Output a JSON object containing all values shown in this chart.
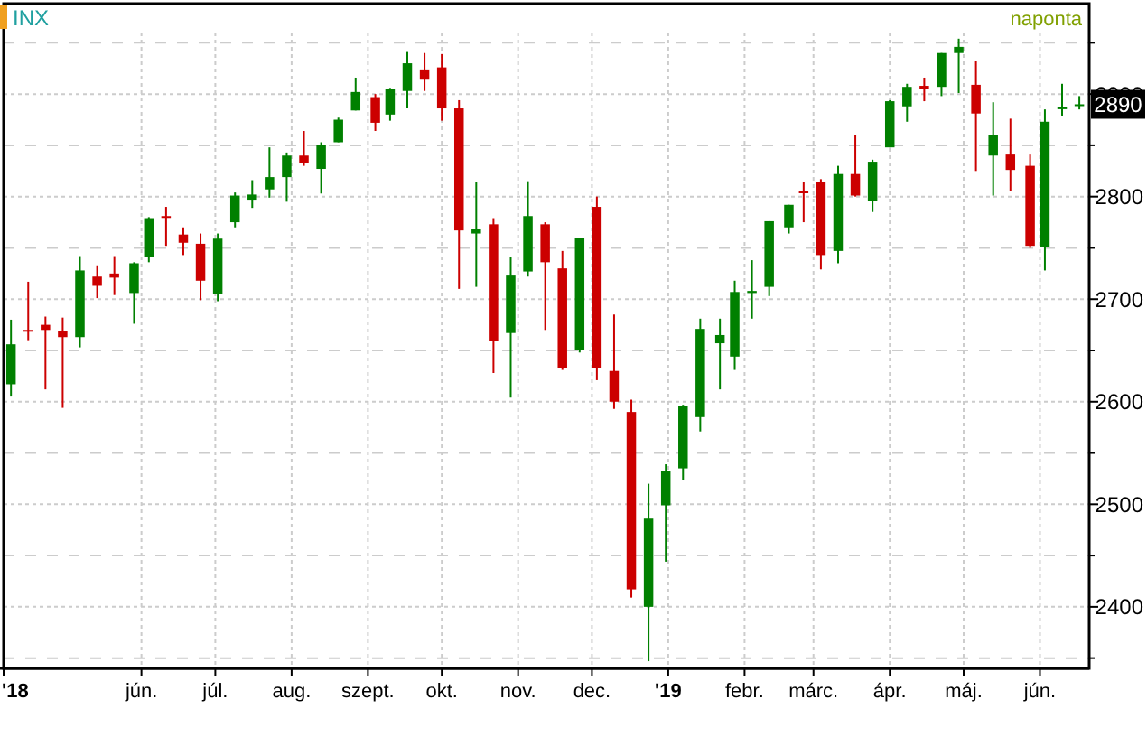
{
  "chart_data": {
    "type": "candlestick",
    "title": "INX",
    "annotations": [
      "naponta",
      {
        "text": "2890",
        "x": "2019-06-17",
        "y": 2890
      }
    ],
    "x": [
      "2018-04-09",
      "2018-04-16",
      "2018-04-23",
      "2018-04-30",
      "2018-05-07",
      "2018-05-14",
      "2018-05-21",
      "2018-05-29",
      "2018-06-04",
      "2018-06-11",
      "2018-06-18",
      "2018-06-25",
      "2018-07-02",
      "2018-07-09",
      "2018-07-16",
      "2018-07-23",
      "2018-07-30",
      "2018-08-06",
      "2018-08-13",
      "2018-08-20",
      "2018-08-27",
      "2018-09-04",
      "2018-09-10",
      "2018-09-17",
      "2018-09-24",
      "2018-10-01",
      "2018-10-08",
      "2018-10-15",
      "2018-10-22",
      "2018-10-29",
      "2018-11-05",
      "2018-11-12",
      "2018-11-19",
      "2018-11-26",
      "2018-12-03",
      "2018-12-10",
      "2018-12-17",
      "2018-12-24",
      "2018-12-31",
      "2019-01-07",
      "2019-01-14",
      "2019-01-22",
      "2019-01-28",
      "2019-02-04",
      "2019-02-11",
      "2019-02-19",
      "2019-02-25",
      "2019-03-04",
      "2019-03-11",
      "2019-03-18",
      "2019-03-25",
      "2019-04-01",
      "2019-04-08",
      "2019-04-15",
      "2019-04-22",
      "2019-04-29",
      "2019-05-06",
      "2019-05-13",
      "2019-05-20",
      "2019-05-28",
      "2019-06-03",
      "2019-06-10",
      "2019-06-17"
    ],
    "ohlc": [
      [
        2617,
        2680,
        2605,
        2656
      ],
      [
        2670,
        2717,
        2660,
        2670
      ],
      [
        2675,
        2683,
        2612,
        2670
      ],
      [
        2669,
        2682,
        2594,
        2663
      ],
      [
        2663,
        2742,
        2653,
        2728
      ],
      [
        2722,
        2733,
        2701,
        2713
      ],
      [
        2725,
        2742,
        2704,
        2721
      ],
      [
        2706,
        2736,
        2676,
        2735
      ],
      [
        2741,
        2780,
        2736,
        2779
      ],
      [
        2781,
        2790,
        2752,
        2780
      ],
      [
        2763,
        2770,
        2743,
        2755
      ],
      [
        2754,
        2764,
        2699,
        2718
      ],
      [
        2705,
        2764,
        2698,
        2759
      ],
      [
        2775,
        2804,
        2770,
        2801
      ],
      [
        2797,
        2816,
        2789,
        2802
      ],
      [
        2807,
        2848,
        2799,
        2819
      ],
      [
        2819,
        2843,
        2795,
        2840
      ],
      [
        2840,
        2864,
        2830,
        2833
      ],
      [
        2827,
        2853,
        2803,
        2850
      ],
      [
        2853,
        2877,
        2853,
        2875
      ],
      [
        2884,
        2916,
        2884,
        2902
      ],
      [
        2897,
        2900,
        2864,
        2872
      ],
      [
        2880,
        2906,
        2874,
        2905
      ],
      [
        2903,
        2941,
        2886,
        2930
      ],
      [
        2924,
        2940,
        2903,
        2914
      ],
      [
        2926,
        2939,
        2874,
        2886
      ],
      [
        2886,
        2894,
        2710,
        2767
      ],
      [
        2764,
        2814,
        2712,
        2768
      ],
      [
        2773,
        2779,
        2628,
        2659
      ],
      [
        2667,
        2741,
        2604,
        2723
      ],
      [
        2727,
        2815,
        2722,
        2781
      ],
      [
        2773,
        2775,
        2670,
        2736
      ],
      [
        2730,
        2747,
        2631,
        2633
      ],
      [
        2650,
        2760,
        2648,
        2760
      ],
      [
        2790,
        2800,
        2621,
        2633
      ],
      [
        2630,
        2685,
        2593,
        2600
      ],
      [
        2590,
        2602,
        2409,
        2417
      ],
      [
        2400,
        2520,
        2347,
        2486
      ],
      [
        2499,
        2539,
        2444,
        2532
      ],
      [
        2535,
        2597,
        2524,
        2596
      ],
      [
        2585,
        2681,
        2571,
        2671
      ],
      [
        2657,
        2681,
        2612,
        2665
      ],
      [
        2644,
        2718,
        2631,
        2707
      ],
      [
        2706,
        2738,
        2681,
        2708
      ],
      [
        2712,
        2776,
        2703,
        2776
      ],
      [
        2770,
        2792,
        2764,
        2792
      ],
      [
        2805,
        2814,
        2775,
        2804
      ],
      [
        2814,
        2817,
        2729,
        2743
      ],
      [
        2747,
        2830,
        2735,
        2822
      ],
      [
        2822,
        2860,
        2800,
        2801
      ],
      [
        2796,
        2836,
        2785,
        2834
      ],
      [
        2848,
        2894,
        2848,
        2893
      ],
      [
        2888,
        2910,
        2873,
        2907
      ],
      [
        2908,
        2916,
        2893,
        2905
      ],
      [
        2907,
        2940,
        2898,
        2940
      ],
      [
        2940,
        2954,
        2901,
        2946
      ],
      [
        2909,
        2932,
        2825,
        2881
      ],
      [
        2840,
        2892,
        2801,
        2860
      ],
      [
        2841,
        2876,
        2805,
        2826
      ],
      [
        2830,
        2841,
        2750,
        2752
      ],
      [
        2751,
        2885,
        2728,
        2873
      ],
      [
        2886,
        2910,
        2879,
        2887
      ],
      [
        2889,
        2898,
        2885,
        2890
      ]
    ],
    "colors": [
      "#008000",
      "#cc0000",
      "#cc0000",
      "#cc0000",
      "#008000",
      "#cc0000",
      "#cc0000",
      "#008000",
      "#008000",
      "#cc0000",
      "#cc0000",
      "#cc0000",
      "#008000",
      "#008000",
      "#008000",
      "#008000",
      "#008000",
      "#cc0000",
      "#008000",
      "#008000",
      "#008000",
      "#cc0000",
      "#008000",
      "#008000",
      "#cc0000",
      "#cc0000",
      "#cc0000",
      "#008000",
      "#cc0000",
      "#008000",
      "#008000",
      "#cc0000",
      "#cc0000",
      "#008000",
      "#cc0000",
      "#cc0000",
      "#cc0000",
      "#008000",
      "#008000",
      "#008000",
      "#008000",
      "#008000",
      "#008000",
      "#008000",
      "#008000",
      "#008000",
      "#cc0000",
      "#cc0000",
      "#008000",
      "#cc0000",
      "#008000",
      "#008000",
      "#008000",
      "#cc0000",
      "#008000",
      "#008000",
      "#cc0000",
      "#008000",
      "#cc0000",
      "#cc0000",
      "#008000",
      "#008000",
      "#008000"
    ],
    "xlim": [
      "2018-04-06",
      "2019-06-21"
    ],
    "xticks": [
      {
        "value": "2018-04-06",
        "label": "'18"
      },
      {
        "value": "2018-06-01",
        "label": "jún."
      },
      {
        "value": "2018-07-01",
        "label": "júl."
      },
      {
        "value": "2018-08-01",
        "label": "aug."
      },
      {
        "value": "2018-09-01",
        "label": "szept."
      },
      {
        "value": "2018-10-01",
        "label": "okt."
      },
      {
        "value": "2018-11-01",
        "label": "nov."
      },
      {
        "value": "2018-12-01",
        "label": "dec."
      },
      {
        "value": "2019-01-01",
        "label": "'19"
      },
      {
        "value": "2019-02-01",
        "label": "febr."
      },
      {
        "value": "2019-03-01",
        "label": "márc."
      },
      {
        "value": "2019-04-01",
        "label": "ápr."
      },
      {
        "value": "2019-05-01",
        "label": "máj."
      },
      {
        "value": "2019-06-01",
        "label": "jún."
      }
    ],
    "ylim": [
      2340,
      2960
    ],
    "yticks": [
      {
        "value": 2350,
        "label": null
      },
      2400,
      {
        "value": 2450,
        "label": null
      },
      2500,
      {
        "value": 2550,
        "label": null
      },
      2600,
      {
        "value": 2650,
        "label": null
      },
      2700,
      {
        "value": 2750,
        "label": null
      },
      2800,
      {
        "value": 2850,
        "label": null
      },
      2900,
      {
        "value": 2950,
        "label": null
      }
    ],
    "grid": true
  }
}
